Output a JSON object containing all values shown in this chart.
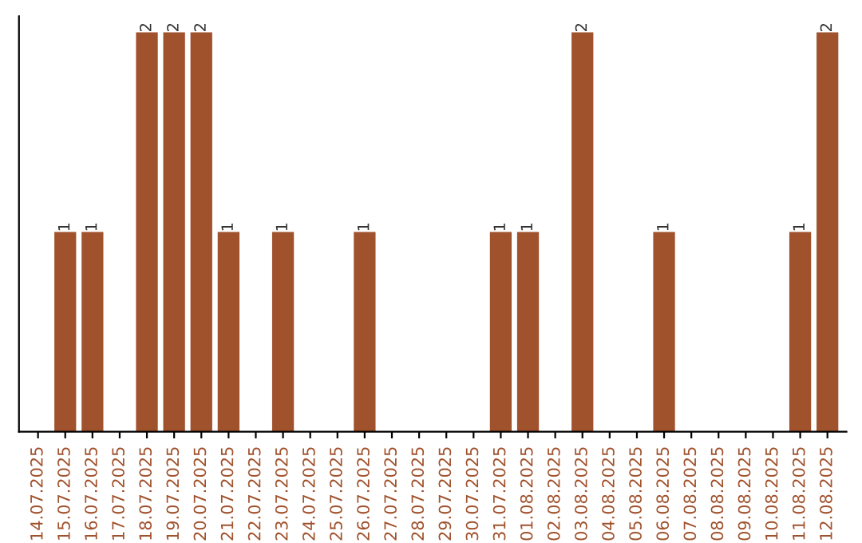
{
  "chart_data": {
    "type": "bar",
    "categories": [
      "14.07.2025",
      "15.07.2025",
      "16.07.2025",
      "17.07.2025",
      "18.07.2025",
      "19.07.2025",
      "20.07.2025",
      "21.07.2025",
      "22.07.2025",
      "23.07.2025",
      "24.07.2025",
      "25.07.2025",
      "26.07.2025",
      "27.07.2025",
      "28.07.2025",
      "29.07.2025",
      "30.07.2025",
      "31.07.2025",
      "01.08.2025",
      "02.08.2025",
      "03.08.2025",
      "04.08.2025",
      "05.08.2025",
      "06.08.2025",
      "07.08.2025",
      "08.08.2025",
      "09.08.2025",
      "10.08.2025",
      "11.08.2025",
      "12.08.2025"
    ],
    "values": [
      0,
      1,
      1,
      0,
      2,
      2,
      2,
      1,
      0,
      1,
      0,
      0,
      1,
      0,
      0,
      0,
      0,
      1,
      1,
      0,
      2,
      0,
      0,
      1,
      0,
      0,
      0,
      0,
      1,
      2
    ],
    "value_labels": [
      null,
      "1",
      "1",
      null,
      "2",
      "2",
      "2",
      "1",
      null,
      "1",
      null,
      null,
      "1",
      null,
      null,
      null,
      null,
      "1",
      "1",
      null,
      "2",
      null,
      null,
      "1",
      null,
      null,
      null,
      null,
      "1",
      "2"
    ],
    "color": "#a0522d",
    "tick_labels": "x",
    "grid": false,
    "legend": false
  }
}
